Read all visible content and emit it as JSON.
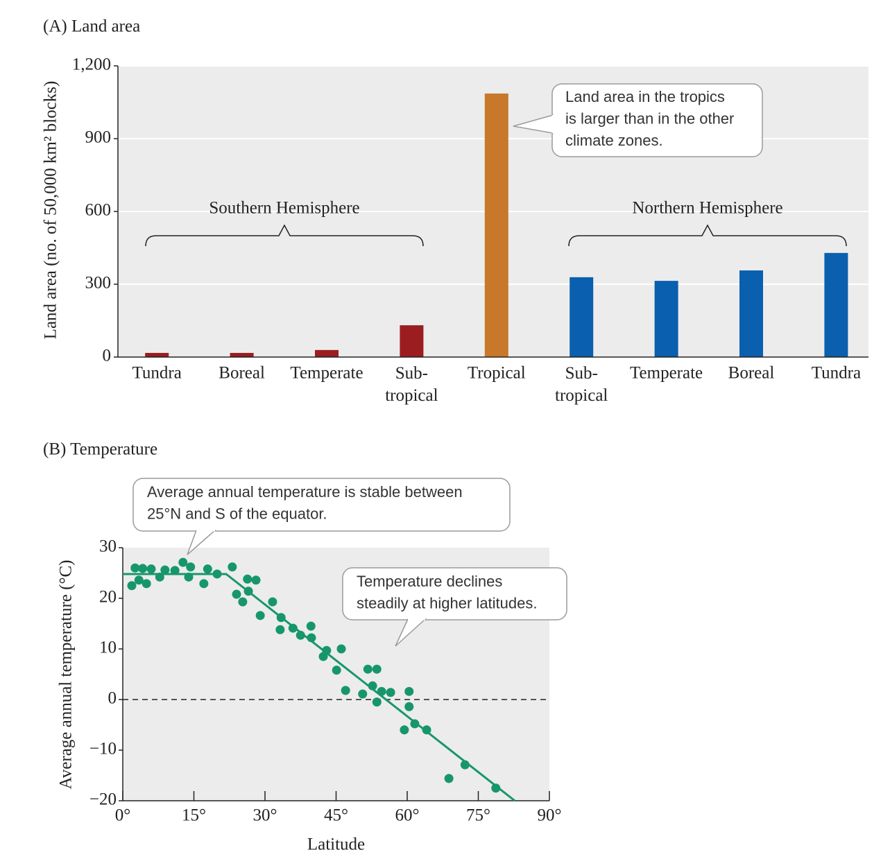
{
  "chart_data": [
    {
      "type": "bar",
      "title": "(A) Land area",
      "y_label": "Land area (no. of 50,000 km² blocks)",
      "categories": [
        "Tundra",
        "Boreal",
        "Temperate",
        "Sub-\ntropical",
        "Tropical",
        "Sub-\ntropical",
        "Temperate",
        "Boreal",
        "Tundra"
      ],
      "values": [
        17,
        17,
        29,
        131,
        1086,
        329,
        314,
        357,
        429
      ],
      "colors": [
        "#9b1d20",
        "#9b1d20",
        "#9b1d20",
        "#9b1d20",
        "#c8782a",
        "#0a5fae",
        "#0a5fae",
        "#0a5fae",
        "#0a5fae"
      ],
      "ylim": [
        0,
        1200
      ],
      "yticks": [
        0,
        300,
        600,
        900,
        {
          "value": 1200,
          "label": "1,200"
        }
      ],
      "grid": true,
      "annotations": [
        "Southern Hemisphere",
        "Northern Hemisphere"
      ],
      "callouts": [
        [
          "Land area in the tropics",
          "is larger than in the other",
          "climate zones."
        ]
      ]
    },
    {
      "type": "scatter",
      "title": "(B) Temperature",
      "x_label": "Latitude",
      "y_label": "Average annual temperature (°C)",
      "series": [
        {
          "mode": "markers",
          "color": "#17966c",
          "x": [
            1.9,
            2.6,
            3.4,
            4.2,
            5.0,
            6.0,
            7.8,
            8.9,
            11.0,
            12.7,
            13.9,
            14.3,
            17.1,
            17.9,
            19.9,
            23.1,
            24.0,
            25.3,
            26.3,
            26.5,
            28.1,
            29.0,
            31.6,
            33.4,
            33.2,
            35.9,
            37.5,
            39.7,
            39.8,
            42.3,
            43.0,
            45.1,
            46.1,
            47.0,
            50.6,
            51.7,
            52.7,
            53.6,
            53.6,
            54.6,
            56.5,
            59.4,
            60.4,
            60.4,
            61.6,
            64.1,
            68.8,
            72.2,
            78.7
          ],
          "values": [
            22.5,
            26.0,
            23.6,
            25.9,
            22.9,
            25.8,
            24.2,
            25.6,
            25.5,
            27.1,
            24.2,
            26.2,
            22.9,
            25.8,
            24.8,
            26.2,
            20.8,
            19.3,
            23.8,
            21.4,
            23.6,
            16.6,
            19.3,
            16.2,
            13.8,
            14.1,
            12.7,
            14.5,
            12.2,
            8.5,
            9.7,
            5.8,
            10.0,
            1.8,
            1.1,
            6.0,
            2.7,
            6.0,
            -0.5,
            1.6,
            1.4,
            -6.0,
            1.6,
            -1.4,
            -4.8,
            -6.0,
            -15.6,
            -12.9,
            -17.5
          ]
        },
        {
          "mode": "line",
          "color": "#17966c",
          "x": [
            0,
            21.8,
            82.7
          ],
          "values": [
            24.8,
            24.8,
            -20
          ]
        }
      ],
      "reference_line": 0,
      "xlim": [
        0,
        90
      ],
      "xticks": [
        {
          "value": 0,
          "label": "0°"
        },
        {
          "value": 15,
          "label": "15°"
        },
        {
          "value": 30,
          "label": "30°"
        },
        {
          "value": 45,
          "label": "45°"
        },
        {
          "value": 60,
          "label": "60°"
        },
        {
          "value": 75,
          "label": "75°"
        },
        {
          "value": 90,
          "label": "90°"
        }
      ],
      "ylim": [
        -20,
        30
      ],
      "yticks": [
        {
          "value": -20,
          "label": "−20"
        },
        {
          "value": -10,
          "label": "−10"
        },
        0,
        10,
        20,
        30
      ],
      "grid": false,
      "callouts": [
        [
          "Average annual temperature is stable between",
          "25°N and S of the equator."
        ],
        [
          "Temperature declines",
          "steadily at higher latitudes."
        ]
      ]
    }
  ]
}
